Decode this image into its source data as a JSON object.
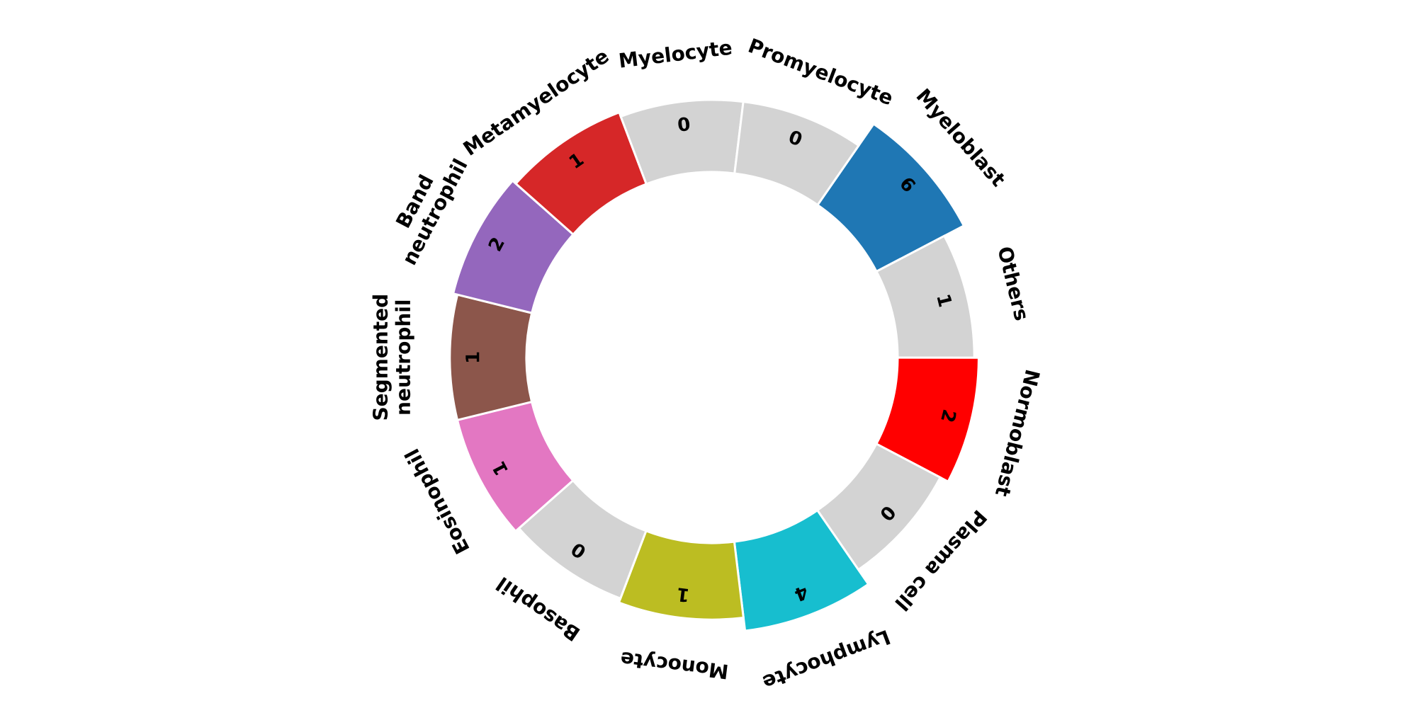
{
  "chart_data": {
    "type": "radial_bar",
    "title": "",
    "start_category": "Myeloblast",
    "direction": "clockwise",
    "zero_color": "#d3d3d3",
    "categories": [
      {
        "label": "Myeloblast",
        "label_lines": [
          "Myeloblast"
        ],
        "value": 6,
        "color": "#1f77b4"
      },
      {
        "label": "Others",
        "label_lines": [
          "Others"
        ],
        "value": 1,
        "color": "#d3d3d3"
      },
      {
        "label": "Normoblast",
        "label_lines": [
          "Normoblast"
        ],
        "value": 2,
        "color": "#ff0000"
      },
      {
        "label": "Plasma cell",
        "label_lines": [
          "Plasma cell"
        ],
        "value": 0,
        "color": "#d3d3d3"
      },
      {
        "label": "Lymphocyte",
        "label_lines": [
          "Lymphocyte"
        ],
        "value": 4,
        "color": "#17becf"
      },
      {
        "label": "Monocyte",
        "label_lines": [
          "Monocyte"
        ],
        "value": 1,
        "color": "#bcbd22"
      },
      {
        "label": "Basophil",
        "label_lines": [
          "Basophil"
        ],
        "value": 0,
        "color": "#d3d3d3"
      },
      {
        "label": "Eosinophil",
        "label_lines": [
          "Eosinophil"
        ],
        "value": 1,
        "color": "#e377c2"
      },
      {
        "label": "Segmented neutrophil",
        "label_lines": [
          "Segmented",
          "neutrophil"
        ],
        "value": 1,
        "color": "#8c564b"
      },
      {
        "label": "Band neutrophil",
        "label_lines": [
          "Band",
          "neutrophil"
        ],
        "value": 2,
        "color": "#9467bd"
      },
      {
        "label": "Metamyelocyte",
        "label_lines": [
          "Metamyelocyte"
        ],
        "value": 1,
        "color": "#d62728"
      },
      {
        "label": "Myelocyte",
        "label_lines": [
          "Myelocyte"
        ],
        "value": 0,
        "color": "#d3d3d3"
      },
      {
        "label": "Promyelocyte",
        "label_lines": [
          "Promyelocyte"
        ],
        "value": 0,
        "color": "#d3d3d3"
      }
    ]
  }
}
